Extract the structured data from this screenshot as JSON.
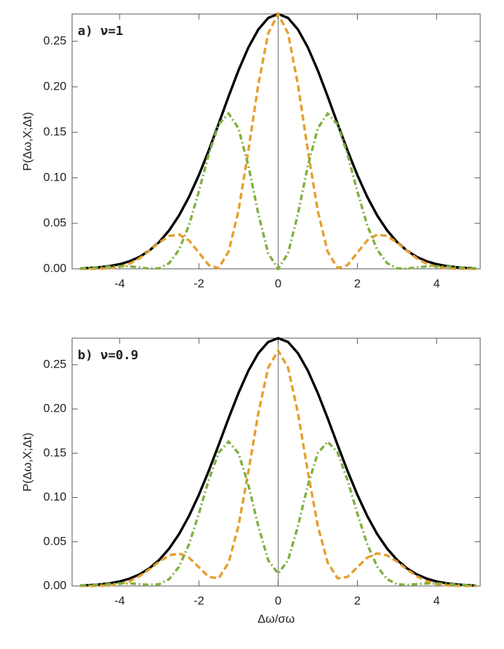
{
  "chart_data": [
    {
      "type": "line",
      "annotation": "a)  ν=1",
      "ylabel": "P(Δω,X;Δt)",
      "xlim": [
        -5.2,
        5.1
      ],
      "ylim": [
        0,
        0.28
      ],
      "xticks": [
        -4,
        -2,
        0,
        2,
        4
      ],
      "yticks": [
        {
          "value": 0,
          "label": "0.00"
        },
        {
          "value": 0.05,
          "label": "0.05"
        },
        {
          "value": 0.1,
          "label": "0.10"
        },
        {
          "value": 0.15,
          "label": "0.15"
        },
        {
          "value": 0.2,
          "label": "0.20"
        },
        {
          "value": 0.25,
          "label": "0.25"
        }
      ],
      "x": [
        -5,
        -4.75,
        -4.5,
        -4.25,
        -4,
        -3.75,
        -3.5,
        -3.25,
        -3,
        -2.75,
        -2.5,
        -2.25,
        -2,
        -1.75,
        -1.5,
        -1.25,
        -1,
        -0.75,
        -0.5,
        -0.25,
        0,
        0.25,
        0.5,
        0.75,
        1,
        1.25,
        1.5,
        1.75,
        2,
        2.25,
        2.5,
        2.75,
        3,
        3.25,
        3.5,
        3.75,
        4,
        4.25,
        4.5,
        4.75,
        5
      ],
      "series": [
        {
          "color": "#000000",
          "style": "solid",
          "values": [
            0.0005,
            0.001,
            0.0018,
            0.0031,
            0.0051,
            0.0083,
            0.0131,
            0.02,
            0.0295,
            0.0423,
            0.0587,
            0.079,
            0.103,
            0.1302,
            0.1595,
            0.1895,
            0.2181,
            0.2433,
            0.263,
            0.2757,
            0.28,
            0.2757,
            0.263,
            0.2433,
            0.2181,
            0.1895,
            0.1595,
            0.1302,
            0.103,
            0.079,
            0.0587,
            0.0423,
            0.0295,
            0.02,
            0.0131,
            0.0083,
            0.0051,
            0.0031,
            0.0018,
            0.001,
            0.0005
          ]
        },
        {
          "color": "#e69f2e",
          "style": "dashed",
          "values": [
            0,
            0,
            0.0001,
            0.0006,
            0.0022,
            0.0056,
            0.0115,
            0.0198,
            0.0289,
            0.0361,
            0.0377,
            0.0312,
            0.0178,
            0.0041,
            0.0008,
            0.0189,
            0.0637,
            0.1303,
            0.2026,
            0.2588,
            0.28,
            0.2588,
            0.2026,
            0.1303,
            0.0637,
            0.0189,
            0.0008,
            0.0041,
            0.0178,
            0.0312,
            0.0377,
            0.0361,
            0.0289,
            0.0198,
            0.0115,
            0.0056,
            0.0022,
            0.0006,
            0.0001,
            0,
            0
          ]
        },
        {
          "color": "#7fb03f",
          "style": "dashdot",
          "values": [
            0.0005,
            0.001,
            0.0017,
            0.0025,
            0.0029,
            0.0027,
            0.0016,
            0.0002,
            0.0006,
            0.0062,
            0.021,
            0.0478,
            0.0852,
            0.1261,
            0.1587,
            0.1706,
            0.1544,
            0.113,
            0.0604,
            0.0169,
            0,
            0.0169,
            0.0604,
            0.113,
            0.1544,
            0.1706,
            0.1587,
            0.1261,
            0.0852,
            0.0478,
            0.021,
            0.0062,
            0.0006,
            0.0002,
            0.0016,
            0.0027,
            0.0029,
            0.0025,
            0.0017,
            0.001,
            0.0005
          ]
        }
      ]
    },
    {
      "type": "line",
      "annotation": "b)  ν=0.9",
      "ylabel": "P(Δω,X;Δt)",
      "xlabel": "Δω/σω",
      "xlim": [
        -5.2,
        5.1
      ],
      "ylim": [
        0,
        0.28
      ],
      "xticks": [
        -4,
        -2,
        0,
        2,
        4
      ],
      "yticks": [
        {
          "value": 0,
          "label": "0.00"
        },
        {
          "value": 0.05,
          "label": "0.05"
        },
        {
          "value": 0.1,
          "label": "0.10"
        },
        {
          "value": 0.15,
          "label": "0.15"
        },
        {
          "value": 0.2,
          "label": "0.20"
        },
        {
          "value": 0.25,
          "label": "0.25"
        }
      ],
      "x": [
        -5,
        -4.75,
        -4.5,
        -4.25,
        -4,
        -3.75,
        -3.5,
        -3.25,
        -3,
        -2.75,
        -2.5,
        -2.25,
        -2,
        -1.75,
        -1.5,
        -1.25,
        -1,
        -0.75,
        -0.5,
        -0.25,
        0,
        0.25,
        0.5,
        0.75,
        1,
        1.25,
        1.5,
        1.75,
        2,
        2.25,
        2.5,
        2.75,
        3,
        3.25,
        3.5,
        3.75,
        4,
        4.25,
        4.5,
        4.75,
        5
      ],
      "series": [
        {
          "color": "#000000",
          "style": "solid",
          "values": [
            0.0005,
            0.001,
            0.0018,
            0.0031,
            0.0051,
            0.0083,
            0.0131,
            0.02,
            0.0295,
            0.0423,
            0.0587,
            0.079,
            0.103,
            0.1302,
            0.1595,
            0.1895,
            0.2181,
            0.2433,
            0.263,
            0.2757,
            0.28,
            0.2757,
            0.263,
            0.2433,
            0.2181,
            0.1895,
            0.1595,
            0.1302,
            0.103,
            0.079,
            0.0587,
            0.0423,
            0.0295,
            0.02,
            0.0131,
            0.0083,
            0.0051,
            0.0031,
            0.0018,
            0.001,
            0.0005
          ]
        },
        {
          "color": "#e69f2e",
          "style": "dashed",
          "values": [
            0.0001,
            0.0001,
            0.0002,
            0.0007,
            0.0022,
            0.0054,
            0.011,
            0.0188,
            0.0275,
            0.0346,
            0.0368,
            0.032,
            0.0212,
            0.0102,
            0.0087,
            0.0264,
            0.0682,
            0.1294,
            0.1954,
            0.2467,
            0.266,
            0.2467,
            0.1954,
            0.1294,
            0.0682,
            0.0264,
            0.0087,
            0.0102,
            0.0212,
            0.032,
            0.0368,
            0.0346,
            0.0275,
            0.0188,
            0.011,
            0.0054,
            0.0022,
            0.0007,
            0.0002,
            0.0001,
            0.0001
          ]
        },
        {
          "color": "#7fb03f",
          "style": "dashdot",
          "values": [
            0.0004,
            0.0009,
            0.0016,
            0.0024,
            0.0029,
            0.0029,
            0.0021,
            0.0012,
            0.002,
            0.0077,
            0.0219,
            0.047,
            0.0818,
            0.12,
            0.1508,
            0.1631,
            0.1499,
            0.1139,
            0.0676,
            0.029,
            0.014,
            0.029,
            0.0676,
            0.1139,
            0.1499,
            0.1631,
            0.1508,
            0.12,
            0.0818,
            0.047,
            0.0219,
            0.0077,
            0.002,
            0.0012,
            0.0021,
            0.0029,
            0.0029,
            0.0024,
            0.0016,
            0.0009,
            0.0004
          ]
        }
      ]
    }
  ]
}
